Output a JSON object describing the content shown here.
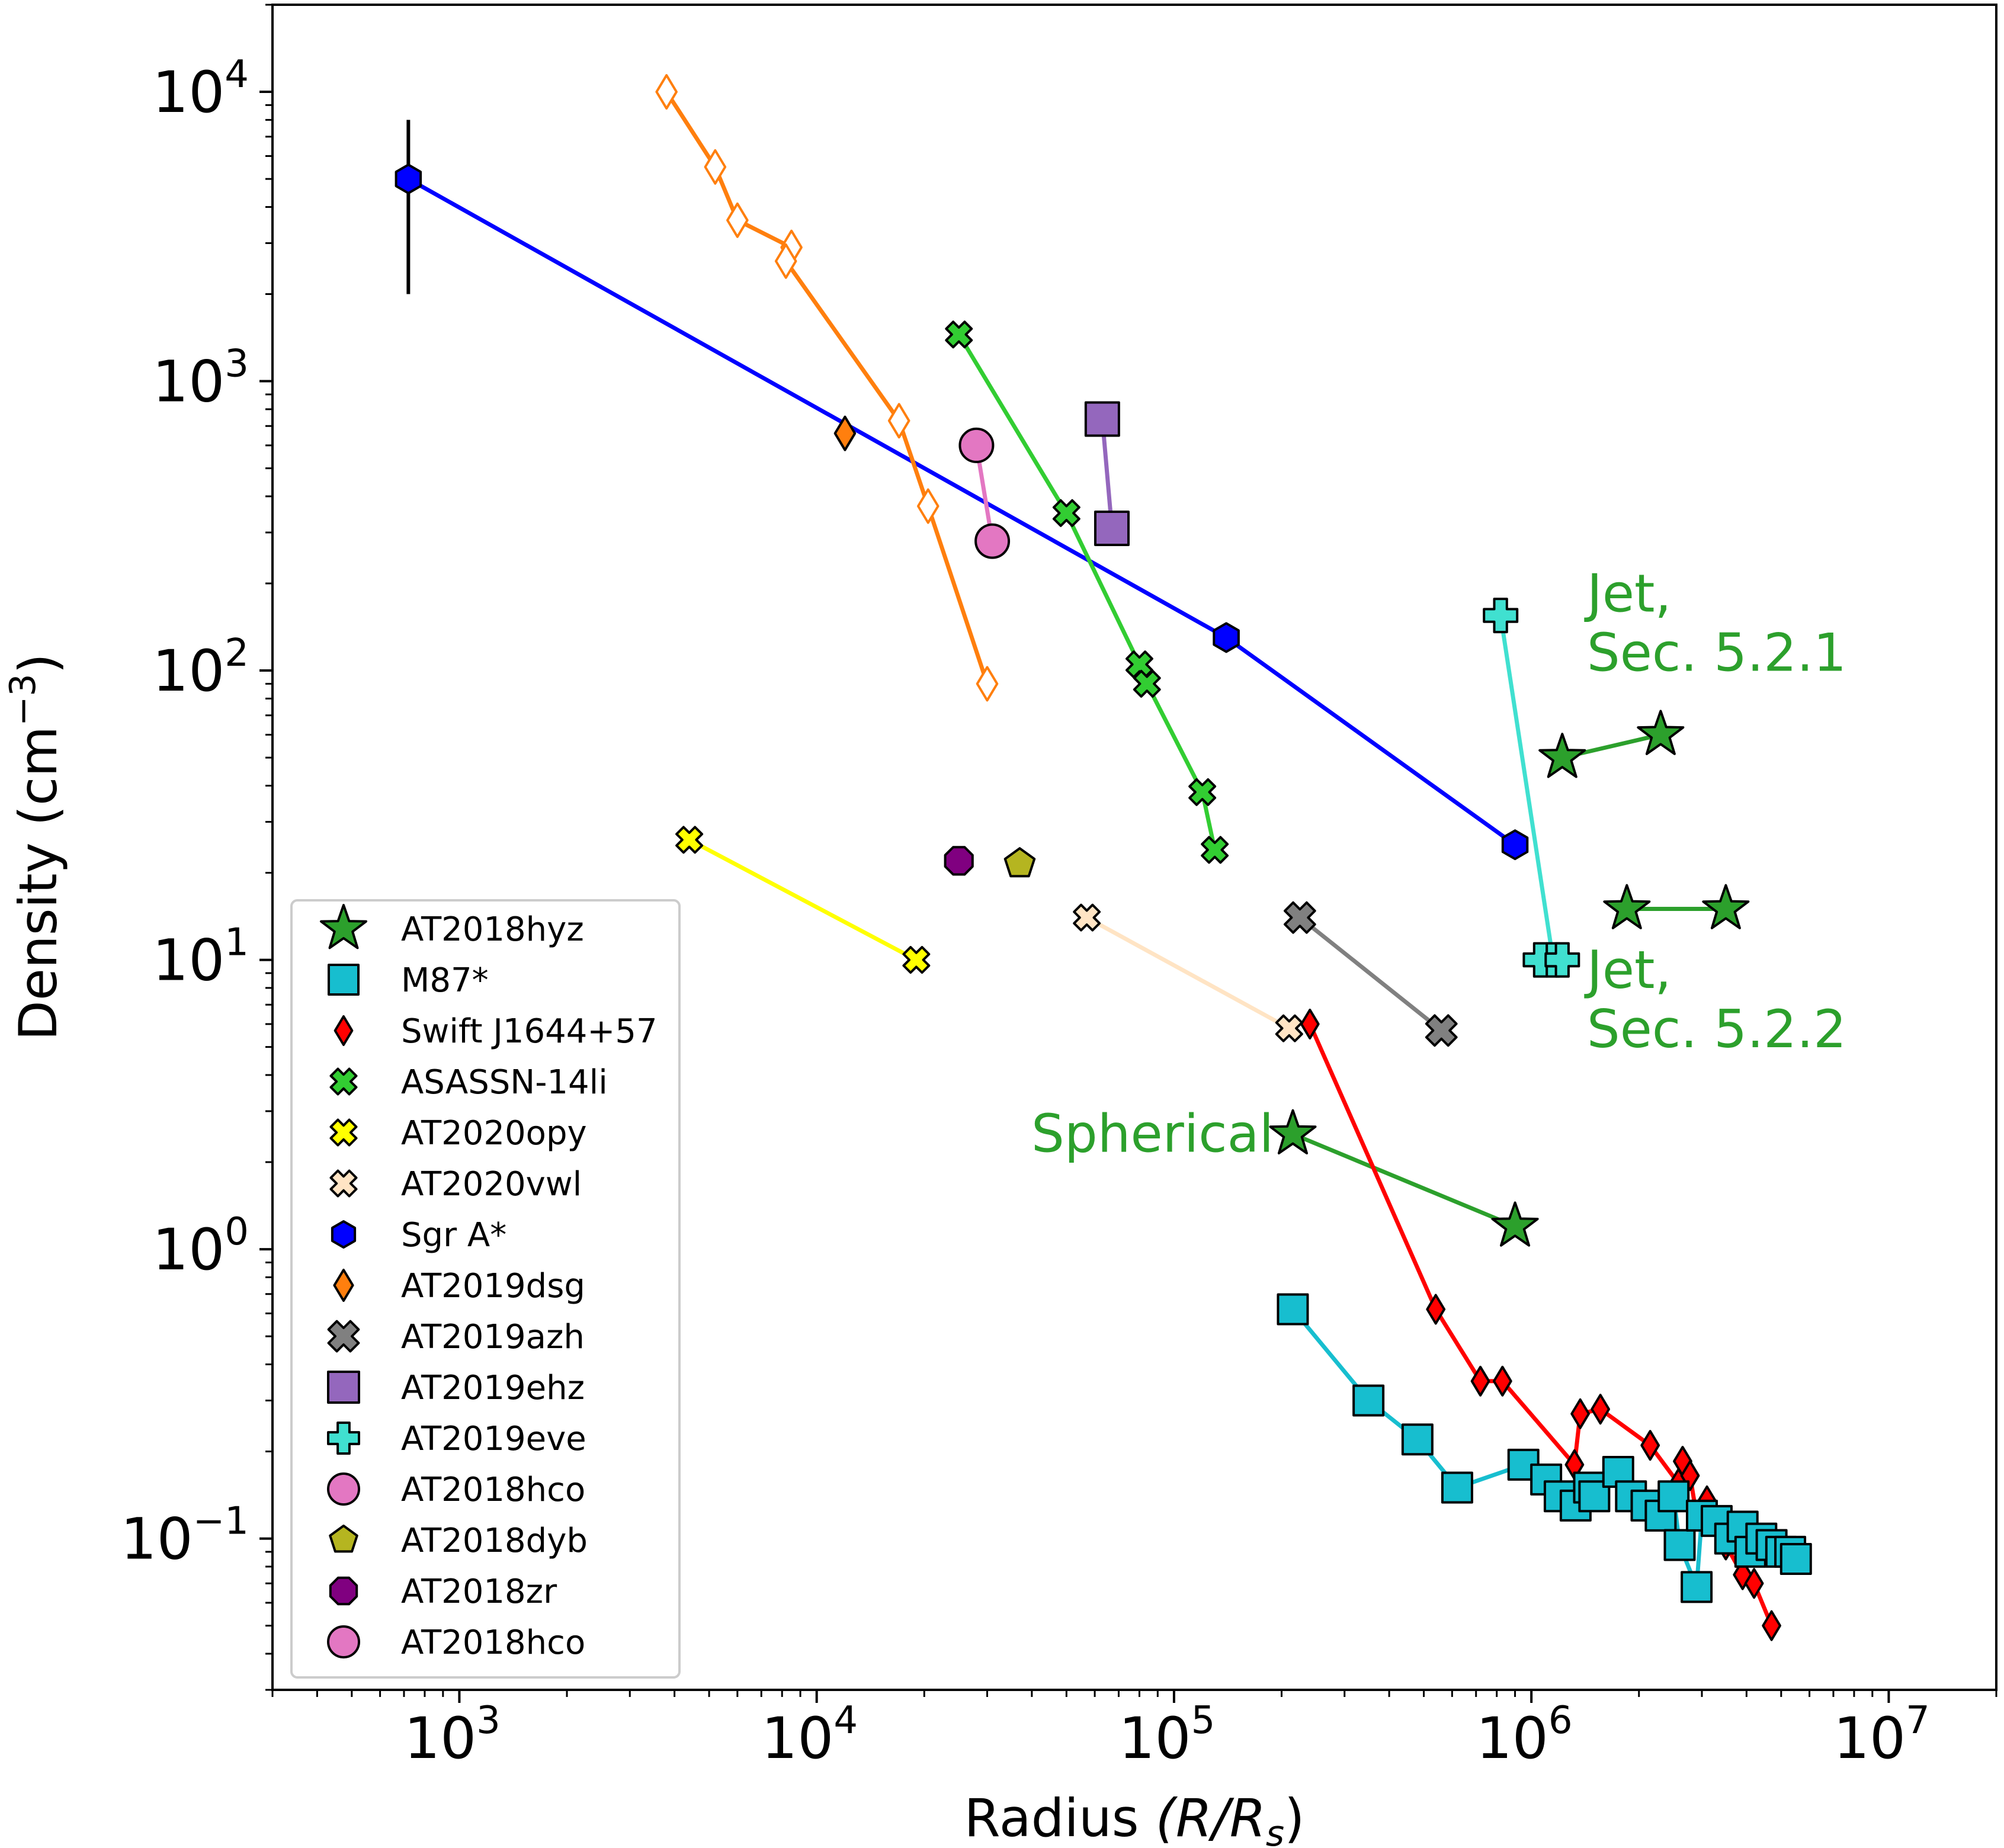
{
  "chart_data": {
    "type": "scatter",
    "title": "",
    "xlabel": "Radius",
    "xlabel_math": "(R/R",
    "xlabel_sub": "s",
    "ylabel": "Density (cm",
    "ylabel_sup": "−3",
    "xscale": "log",
    "yscale": "log",
    "xlim": [
      300,
      20000000
    ],
    "ylim": [
      0.03,
      20000
    ],
    "x_ticks": [
      {
        "value": 1000,
        "base": "10",
        "exp": "3"
      },
      {
        "value": 10000,
        "base": "10",
        "exp": "4"
      },
      {
        "value": 100000,
        "base": "10",
        "exp": "5"
      },
      {
        "value": 1000000,
        "base": "10",
        "exp": "6"
      },
      {
        "value": 10000000,
        "base": "10",
        "exp": "7"
      }
    ],
    "y_ticks": [
      {
        "value": 0.1,
        "base": "10",
        "exp": "−1"
      },
      {
        "value": 1,
        "base": "10",
        "exp": "0"
      },
      {
        "value": 10,
        "base": "10",
        "exp": "1"
      },
      {
        "value": 100,
        "base": "10",
        "exp": "2"
      },
      {
        "value": 1000,
        "base": "10",
        "exp": "3"
      },
      {
        "value": 10000,
        "base": "10",
        "exp": "4"
      }
    ],
    "grid": false,
    "legend_position": "lower-left",
    "annotations": [
      {
        "text": "Jet,",
        "text2": "Sec. 5.2.1",
        "x": 1300000,
        "y": 160,
        "color": "#2ca02c"
      },
      {
        "text": "Jet,",
        "text2": "Sec. 5.2.2",
        "x": 1300000,
        "y": 8,
        "color": "#2ca02c"
      },
      {
        "text": "Spherical",
        "x": 190000,
        "y": 2.5,
        "color": "#2ca02c",
        "anchor": "end"
      }
    ],
    "series": [
      {
        "name": "Sgr A*",
        "marker": "hexagon",
        "color": "#0000ff",
        "line": "#0000ff",
        "size": 48,
        "segments": [
          [
            [
              720,
              5000
            ],
            [
              140000,
              130
            ],
            [
              900000,
              25
            ]
          ]
        ],
        "errorbar": {
          "x": 720,
          "y_low": 2000,
          "y_high": 8000
        }
      },
      {
        "name": "",
        "marker": "diamond",
        "color": "#ffffff",
        "edge": "#ff7f0e",
        "line": "#ff7f0e",
        "size": 56,
        "legend": false,
        "segments": [
          [
            [
              3800,
              10000
            ],
            [
              5200,
              5500
            ],
            [
              6000,
              3600
            ],
            [
              8500,
              2900
            ]
          ],
          [
            [
              8200,
              2600
            ],
            [
              17000,
              730
            ],
            [
              20500,
              370
            ],
            [
              30000,
              90
            ]
          ]
        ]
      },
      {
        "name": "AT2019dsg",
        "marker": "diamond",
        "color": "#ff7f0e",
        "size": 56,
        "segments": [
          [
            [
              12000,
              660
            ]
          ]
        ]
      },
      {
        "name": "ASASSN-14li",
        "marker": "x",
        "color": "#32cd32",
        "line": "#32cd32",
        "size": 44,
        "segments": [
          [
            [
              25000,
              1450
            ],
            [
              50000,
              350
            ],
            [
              80000,
              105
            ],
            [
              84000,
              90
            ],
            [
              120000,
              38
            ],
            [
              130000,
              24
            ]
          ]
        ]
      },
      {
        "name": "AT2019ehz",
        "marker": "square",
        "color": "#9467bd",
        "line": "#9467bd",
        "size": 56,
        "segments": [
          [
            [
              63000,
              740
            ],
            [
              67000,
              310
            ]
          ]
        ]
      },
      {
        "name": "AT2018hco",
        "marker": "circle",
        "color": "#e377c2",
        "line": "#e377c2",
        "size": 56,
        "segments": [
          [
            [
              28000,
              600
            ],
            [
              31000,
              280
            ]
          ]
        ]
      },
      {
        "name": "AT2019eve",
        "marker": "plus",
        "color": "#40e0d0",
        "line": "#40e0d0",
        "size": 56,
        "segments": [
          [
            [
              820000,
              155
            ],
            [
              1150000,
              10
            ]
          ],
          [
            [
              1060000,
              10
            ],
            [
              1220000,
              10
            ]
          ]
        ]
      },
      {
        "name": "AT2018hyz",
        "marker": "star",
        "color": "#2ca02c",
        "line": "#2ca02c",
        "size": 80,
        "segments": [
          [
            [
              1220000,
              50
            ],
            [
              2300000,
              60
            ]
          ],
          [
            [
              1850000,
              15
            ],
            [
              3500000,
              15
            ]
          ],
          [
            [
              215000,
              2.5
            ],
            [
              900000,
              1.2
            ]
          ]
        ]
      },
      {
        "name": "AT2020opy",
        "marker": "x",
        "color": "#ffff00",
        "line": "#ffff00",
        "size": 44,
        "segments": [
          [
            [
              4400,
              26
            ],
            [
              19000,
              10
            ]
          ]
        ]
      },
      {
        "name": "AT2018zr",
        "marker": "octagon",
        "color": "#800080",
        "size": 50,
        "segments": [
          [
            [
              25000,
              22
            ]
          ]
        ]
      },
      {
        "name": "AT2018dyb",
        "marker": "pentagon",
        "color": "#b5b520",
        "size": 52,
        "segments": [
          [
            [
              37000,
              21.5
            ]
          ]
        ]
      },
      {
        "name": "AT2020vwl",
        "marker": "x",
        "color": "#ffe4c4",
        "line": "#ffe4c4",
        "size": 44,
        "segments": [
          [
            [
              57000,
              14
            ],
            [
              210000,
              5.8
            ]
          ]
        ]
      },
      {
        "name": "AT2019azh",
        "marker": "x",
        "color": "#808080",
        "line": "#808080",
        "size": 52,
        "segments": [
          [
            [
              225000,
              14
            ],
            [
              560000,
              5.7
            ]
          ]
        ]
      },
      {
        "name": "Swift J1644+57",
        "marker": "diamond",
        "color": "#ff0000",
        "line": "#ff0000",
        "size": 48,
        "segments": [
          [
            [
              240000,
              6
            ],
            [
              540000,
              0.62
            ],
            [
              720000,
              0.35
            ],
            [
              830000,
              0.35
            ],
            [
              1320000,
              0.18
            ],
            [
              1370000,
              0.27
            ],
            [
              1560000,
              0.28
            ],
            [
              2150000,
              0.21
            ],
            [
              2580000,
              0.155
            ],
            [
              2650000,
              0.185
            ],
            [
              2780000,
              0.165
            ],
            [
              2900000,
              0.12
            ],
            [
              3100000,
              0.135
            ],
            [
              3500000,
              0.095
            ],
            [
              3900000,
              0.075
            ],
            [
              4200000,
              0.07
            ],
            [
              4700000,
              0.05
            ]
          ]
        ]
      },
      {
        "name": "M87*",
        "marker": "square",
        "color": "#17becf",
        "line": "#17becf",
        "size": 50,
        "segments": [
          [
            [
              215000,
              0.62
            ],
            [
              350000,
              0.3
            ],
            [
              480000,
              0.22
            ],
            [
              620000,
              0.15
            ],
            [
              950000,
              0.18
            ],
            [
              1100000,
              0.16
            ],
            [
              1200000,
              0.14
            ],
            [
              1330000,
              0.13
            ],
            [
              1450000,
              0.15
            ],
            [
              1500000,
              0.14
            ],
            [
              1750000,
              0.17
            ],
            [
              1900000,
              0.14
            ],
            [
              2100000,
              0.13
            ],
            [
              2300000,
              0.12
            ],
            [
              2500000,
              0.14
            ],
            [
              2600000,
              0.095
            ],
            [
              2900000,
              0.068
            ],
            [
              3000000,
              0.12
            ],
            [
              3300000,
              0.115
            ],
            [
              3600000,
              0.1
            ],
            [
              3900000,
              0.11
            ],
            [
              4100000,
              0.09
            ],
            [
              4400000,
              0.1
            ],
            [
              4700000,
              0.095
            ],
            [
              5000000,
              0.09
            ],
            [
              5300000,
              0.09
            ],
            [
              5500000,
              0.085
            ]
          ]
        ]
      }
    ],
    "legend": [
      {
        "label": "AT2018hyz",
        "marker": "star",
        "color": "#2ca02c",
        "size": 80
      },
      {
        "label": "M87*",
        "marker": "square",
        "color": "#17becf",
        "size": 50
      },
      {
        "label": "Swift J1644+57",
        "marker": "diamond",
        "color": "#ff0000",
        "size": 48
      },
      {
        "label": "ASASSN-14li",
        "marker": "x",
        "color": "#32cd32",
        "size": 44
      },
      {
        "label": "AT2020opy",
        "marker": "x",
        "color": "#ffff00",
        "size": 44
      },
      {
        "label": "AT2020vwl",
        "marker": "x",
        "color": "#ffe4c4",
        "size": 44
      },
      {
        "label": "Sgr A*",
        "marker": "hexagon",
        "color": "#0000ff",
        "size": 44
      },
      {
        "label": "AT2019dsg",
        "marker": "diamond",
        "color": "#ff7f0e",
        "size": 52
      },
      {
        "label": "AT2019azh",
        "marker": "x",
        "color": "#808080",
        "size": 52
      },
      {
        "label": "AT2019ehz",
        "marker": "square",
        "color": "#9467bd",
        "size": 52
      },
      {
        "label": "AT2019eve",
        "marker": "plus",
        "color": "#40e0d0",
        "size": 52
      },
      {
        "label": "AT2018hco",
        "marker": "circle",
        "color": "#e377c2",
        "size": 52
      },
      {
        "label": "AT2018dyb",
        "marker": "pentagon",
        "color": "#b5b520",
        "size": 48
      },
      {
        "label": "AT2018zr",
        "marker": "octagon",
        "color": "#800080",
        "size": 48
      },
      {
        "label": "AT2018hco",
        "marker": "circle",
        "color": "#e377c2",
        "size": 52
      }
    ]
  }
}
